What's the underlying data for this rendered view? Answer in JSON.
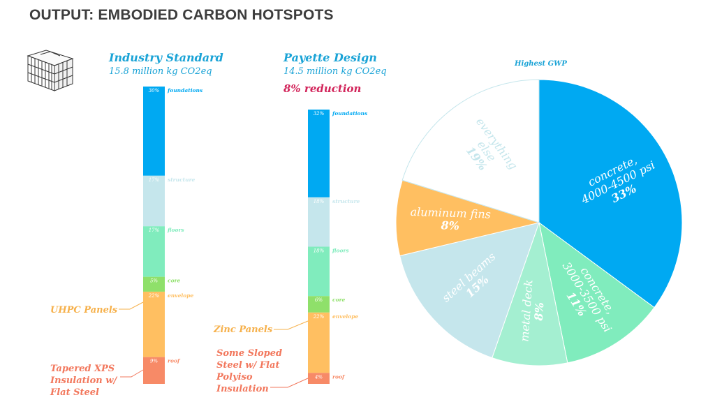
{
  "title": "OUTPUT: EMBODIED CARBON HOTSPOTS",
  "building_icon": "building-isometric-icon",
  "chart_data": [
    {
      "type": "bar",
      "subtype": "stacked-column",
      "title": "Industry Standard",
      "subtitle": "15.8 million kg CO2eq",
      "categories": [
        "foundations",
        "structure",
        "floors",
        "core",
        "envelope",
        "roof"
      ],
      "values": [
        30,
        17,
        17,
        5,
        22,
        9
      ],
      "value_labels": [
        "30%",
        "17%",
        "17%",
        "5%",
        "22%",
        "9%"
      ],
      "colors": [
        "#00a9f2",
        "#c5e6ec",
        "#80ecbd",
        "#8fe06a",
        "#ffbf61",
        "#f78a67"
      ],
      "annotations": [
        "UHPC Panels",
        "Tapered XPS Insulation w/ Flat Steel"
      ]
    },
    {
      "type": "bar",
      "subtype": "stacked-column",
      "title": "Payette Design",
      "subtitle": "14.5 million kg CO2eq",
      "note": "8% reduction",
      "categories": [
        "foundations",
        "structure",
        "floors",
        "core",
        "envelope",
        "roof"
      ],
      "values": [
        32,
        18,
        18,
        6,
        22,
        4
      ],
      "value_labels": [
        "32%",
        "18%",
        "18%",
        "6%",
        "22%",
        "4%"
      ],
      "colors": [
        "#00a9f2",
        "#c5e6ec",
        "#80ecbd",
        "#8fe06a",
        "#ffbf61",
        "#f78a67"
      ],
      "annotations": [
        "Zinc Panels",
        "Some Sloped Steel w/ Flat Polyiso Insulation"
      ]
    },
    {
      "type": "pie",
      "title": "Highest GWP",
      "slices": [
        {
          "label": "concrete, 4000-4500 psi",
          "value": 33,
          "pct": "33%",
          "color": "#00a9f2"
        },
        {
          "label": "concrete, 3000-3500 psi",
          "value": 11,
          "pct": "11%",
          "color": "#80ecbd"
        },
        {
          "label": "metal deck",
          "value": 8,
          "pct": "8%",
          "color": "#a4efd1"
        },
        {
          "label": "steel beams",
          "value": 15,
          "pct": "15%",
          "color": "#c5e6ec"
        },
        {
          "label": "aluminum fins",
          "value": 8,
          "pct": "8%",
          "color": "#ffbf61"
        },
        {
          "label": "everything else",
          "value": 19,
          "pct": "19%",
          "color": "#ffffff"
        }
      ]
    }
  ],
  "colors": {
    "accent": "#1aa3d6",
    "reduction": "#d2245a",
    "annotation_orange": "#f6b04a",
    "annotation_red": "#f2775c"
  }
}
